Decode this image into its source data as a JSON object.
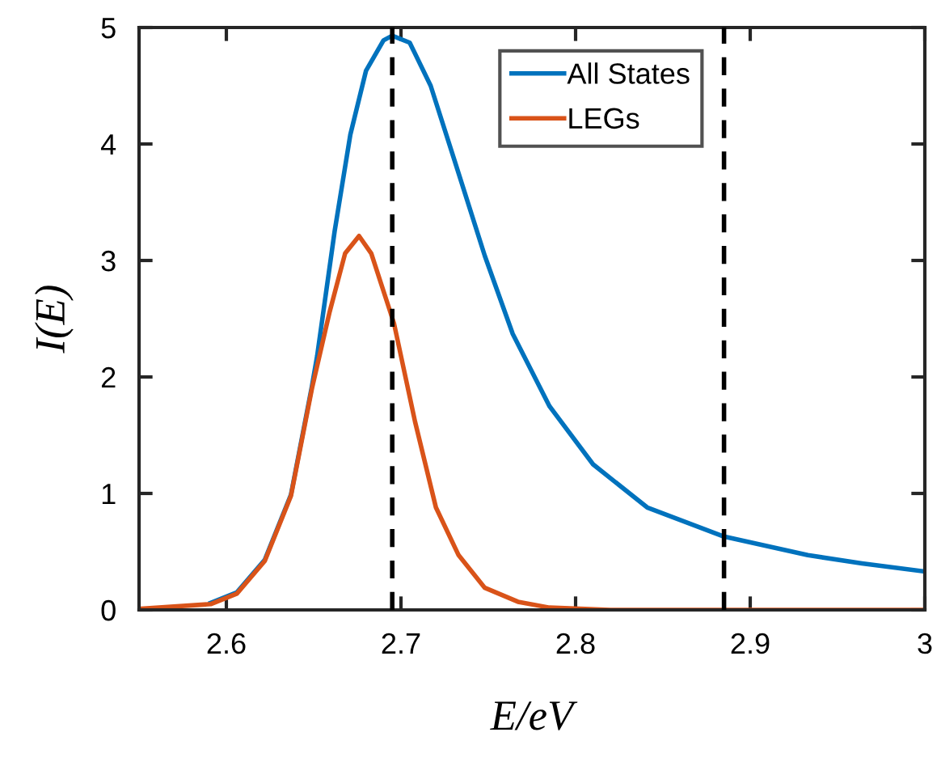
{
  "chart_data": {
    "type": "line",
    "xlabel": "E/eV",
    "ylabel": "I(E)",
    "xlim": [
      2.55,
      3.0
    ],
    "xticks": [
      2.6,
      2.7,
      2.8,
      2.9,
      {
        "value": 3.0,
        "label": "3"
      }
    ],
    "ylim": [
      0,
      5
    ],
    "yticks": [
      0,
      1,
      2,
      3,
      4,
      5
    ],
    "legend": "top right",
    "grid": false,
    "marker": "none",
    "line_style": "solid",
    "series": [
      {
        "name": "All States",
        "color": "#0072bd",
        "x": [
          2.591,
          2.606,
          2.622,
          2.637,
          2.649,
          2.652,
          2.662,
          2.671,
          2.68,
          2.69,
          2.695,
          2.705,
          2.717,
          2.73,
          2.748,
          2.764,
          2.785,
          2.81,
          2.841,
          2.885,
          2.933,
          2.964,
          3.0
        ],
        "values": [
          0.06,
          0.15,
          0.43,
          0.99,
          1.92,
          2.18,
          3.25,
          4.08,
          4.63,
          4.89,
          4.93,
          4.87,
          4.5,
          3.89,
          3.04,
          2.37,
          1.75,
          1.25,
          0.88,
          0.63,
          0.47,
          0.4,
          0.33
        ]
      },
      {
        "name": "LEGs",
        "color": "#d95319",
        "x": [
          2.551,
          2.591,
          2.606,
          2.622,
          2.637,
          2.649,
          2.659,
          2.668,
          2.676,
          2.683,
          2.696,
          2.708,
          2.72,
          2.733,
          2.748,
          2.767,
          2.785,
          2.82,
          2.9,
          3.0
        ],
        "values": [
          0.01,
          0.05,
          0.14,
          0.42,
          0.98,
          1.9,
          2.55,
          3.06,
          3.21,
          3.06,
          2.46,
          1.62,
          0.88,
          0.47,
          0.19,
          0.07,
          0.02,
          0.0,
          0.0,
          0.0
        ]
      }
    ],
    "ref_lines": [
      {
        "axis": "x",
        "value": 2.695,
        "color": "#000000",
        "line_style": "dashed"
      },
      {
        "axis": "x",
        "value": 2.885,
        "color": "#000000",
        "line_style": "dashed"
      }
    ]
  }
}
